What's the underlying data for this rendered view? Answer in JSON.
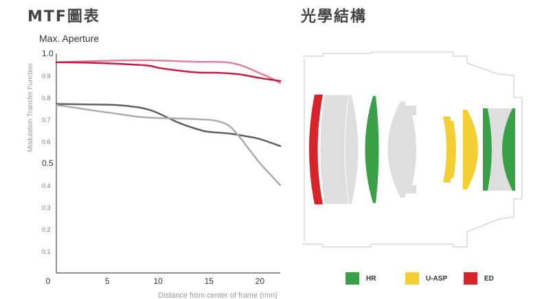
{
  "titles": {
    "mtf": "MTF圖表",
    "lens": "光學結構"
  },
  "chart_data": {
    "type": "line",
    "subtitle": "Max. Aperture",
    "xlabel": "Distance from center of frame (mm)",
    "ylabel": "Modulation Transfer Function",
    "xlim": [
      0,
      22
    ],
    "ylim": [
      0,
      1.0
    ],
    "xticks": [
      "0",
      "5",
      "10",
      "15",
      "20"
    ],
    "xtick_values": [
      0,
      5,
      10,
      15,
      20
    ],
    "yticks": [
      "1.0",
      "0.9",
      "0.8",
      "0.7",
      "0.6",
      "0.5",
      "0.4",
      "0.3",
      "0.2",
      "0.1"
    ],
    "ytick_values": [
      1.0,
      0.9,
      0.8,
      0.7,
      0.6,
      0.5,
      0.4,
      0.3,
      0.2,
      0.1
    ],
    "grid": false,
    "series": [
      {
        "color": "#e07f99",
        "x": [
          0,
          3,
          6,
          9,
          12,
          14,
          16,
          17,
          18,
          19,
          20,
          21,
          22
        ],
        "y": [
          0.96,
          0.965,
          0.968,
          0.969,
          0.965,
          0.962,
          0.962,
          0.958,
          0.948,
          0.93,
          0.91,
          0.89,
          0.865
        ]
      },
      {
        "color": "#c8193f",
        "x": [
          0,
          3,
          6,
          9,
          10,
          12,
          14,
          16,
          18,
          20,
          22
        ],
        "y": [
          0.96,
          0.958,
          0.953,
          0.945,
          0.935,
          0.922,
          0.913,
          0.912,
          0.905,
          0.888,
          0.875
        ]
      },
      {
        "color": "#5e5e5e",
        "x": [
          0,
          3,
          6,
          8,
          9,
          10,
          12,
          14,
          15,
          17,
          19,
          20,
          22
        ],
        "y": [
          0.77,
          0.768,
          0.765,
          0.755,
          0.745,
          0.728,
          0.685,
          0.653,
          0.643,
          0.635,
          0.62,
          0.61,
          0.578
        ]
      },
      {
        "color": "#ababab",
        "x": [
          0,
          2,
          4,
          6,
          8,
          10,
          12,
          14,
          15,
          16,
          17,
          18,
          19,
          20,
          21,
          22
        ],
        "y": [
          0.765,
          0.752,
          0.738,
          0.725,
          0.712,
          0.706,
          0.704,
          0.7,
          0.698,
          0.69,
          0.67,
          0.62,
          0.56,
          0.5,
          0.45,
          0.4
        ]
      }
    ]
  },
  "legend": [
    {
      "label": "HR",
      "color": "#3aa047"
    },
    {
      "label": "U-ASP",
      "color": "#f3cf34"
    },
    {
      "label": "ED",
      "color": "#d8232a"
    }
  ],
  "lens_colors": {
    "hr": "#3aa047",
    "uasp": "#f3cf34",
    "ed": "#d8232a",
    "plain": "#dedede"
  }
}
